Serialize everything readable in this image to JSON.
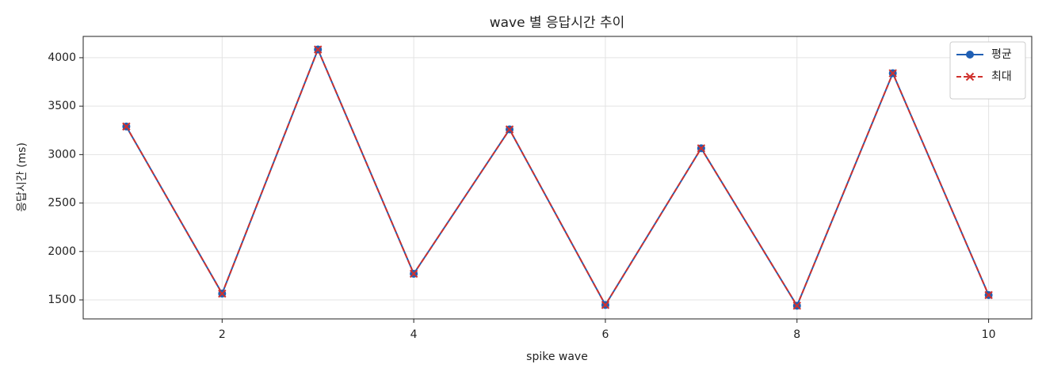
{
  "chart_data": {
    "type": "line",
    "title": "wave 별 응답시간 추이",
    "xlabel": "spike wave",
    "ylabel": "응답시간 (ms)",
    "x": [
      1,
      2,
      3,
      4,
      5,
      6,
      7,
      8,
      9,
      10
    ],
    "series": [
      {
        "name": "평균",
        "color": "#1f5fb4",
        "marker": "o",
        "dash": false,
        "values": [
          3290,
          1565,
          4085,
          1770,
          3260,
          1448,
          3065,
          1440,
          3840,
          1550
        ]
      },
      {
        "name": "최대",
        "color": "#d0312d",
        "marker": "x",
        "dash": true,
        "values": [
          3290,
          1565,
          4085,
          1770,
          3260,
          1448,
          3065,
          1440,
          3840,
          1550
        ]
      }
    ],
    "xlim": [
      0.55,
      10.45
    ],
    "ylim": [
      1304,
      4220
    ],
    "xticks": [
      2,
      4,
      6,
      8,
      10
    ],
    "yticks": [
      1500,
      2000,
      2500,
      3000,
      3500,
      4000
    ],
    "grid": true,
    "legend": "upper right"
  }
}
